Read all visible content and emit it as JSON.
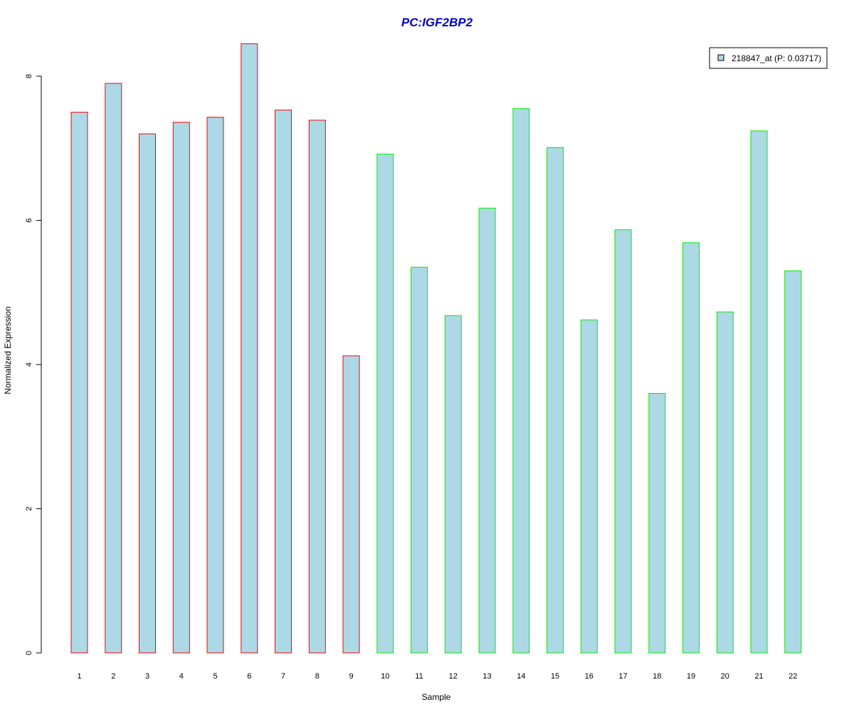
{
  "chart_data": {
    "type": "bar",
    "title": "PC:IGF2BP2",
    "xlabel": "Sample",
    "ylabel": "Normalized Expression",
    "categories": [
      "1",
      "2",
      "3",
      "4",
      "5",
      "6",
      "7",
      "8",
      "9",
      "10",
      "11",
      "12",
      "13",
      "14",
      "15",
      "16",
      "17",
      "18",
      "19",
      "20",
      "21",
      "22"
    ],
    "values": [
      7.5,
      7.9,
      7.2,
      7.36,
      7.43,
      8.45,
      7.53,
      7.39,
      4.12,
      6.92,
      5.35,
      4.68,
      6.17,
      7.55,
      7.01,
      4.62,
      5.87,
      3.6,
      5.69,
      4.73,
      7.24,
      5.3
    ],
    "group_border_colors": [
      "#ff0000",
      "#ff0000",
      "#ff0000",
      "#ff0000",
      "#ff0000",
      "#ff0000",
      "#ff0000",
      "#ff0000",
      "#ff0000",
      "#00ee00",
      "#00ee00",
      "#00ee00",
      "#00ee00",
      "#00ee00",
      "#00ee00",
      "#00ee00",
      "#00ee00",
      "#00ee00",
      "#00ee00",
      "#00ee00",
      "#00ee00",
      "#00ee00"
    ],
    "series": [
      {
        "name": "218847_at (P: 0.03717)",
        "color": "#add8e6"
      }
    ],
    "yticks": [
      "0",
      "2",
      "4",
      "6",
      "8"
    ],
    "ylim": [
      0,
      8.5
    ],
    "grid": false,
    "legend_position": "top-right"
  },
  "colors": {
    "title": "#0000cc",
    "bar_fill": "#add8e6",
    "axis": "#000000"
  }
}
